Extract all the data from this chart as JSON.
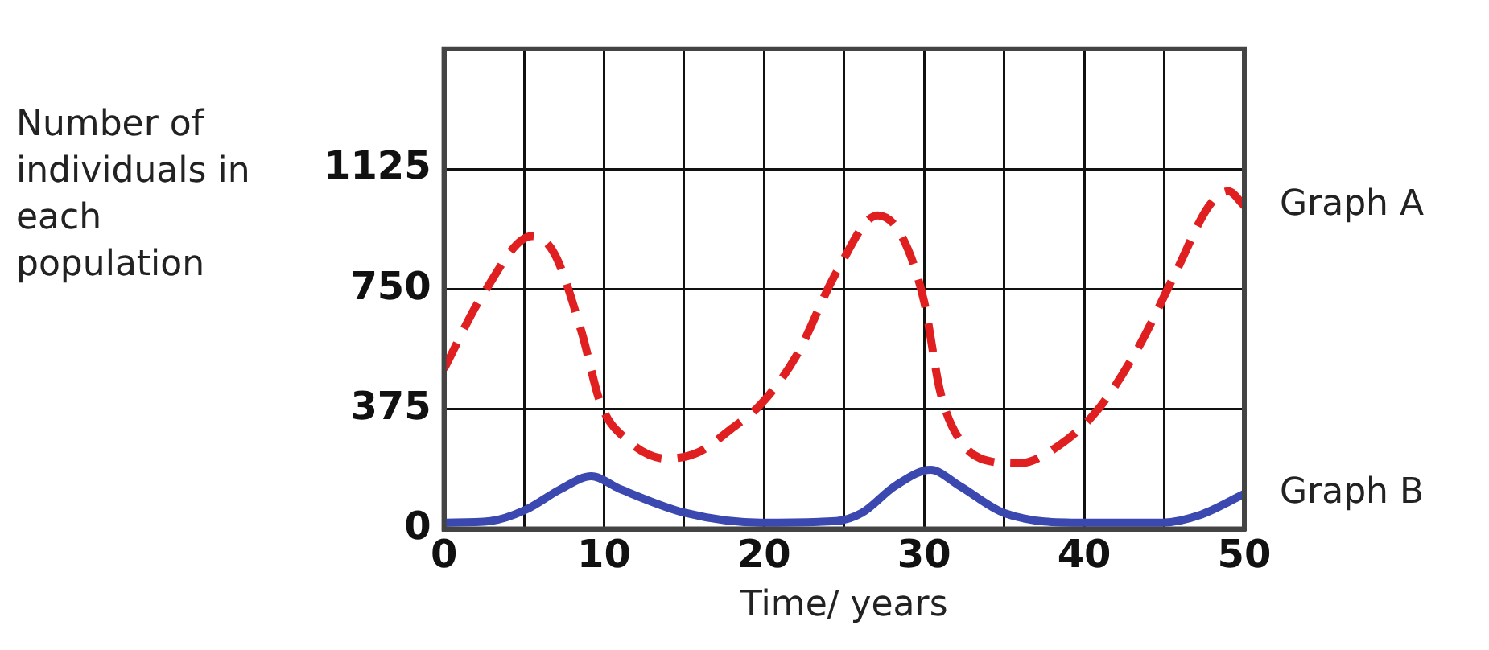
{
  "chart_data": {
    "type": "line",
    "xlabel": "Time/ years",
    "ylabel": "Number of individuals in each population",
    "xlim": [
      0,
      50
    ],
    "xticks": [
      0,
      {
        "value": 5,
        "label": null
      },
      10,
      {
        "value": 15,
        "label": null
      },
      20,
      {
        "value": 25,
        "label": null
      },
      30,
      {
        "value": 35,
        "label": null
      },
      40,
      {
        "value": 45,
        "label": null
      },
      50
    ],
    "ylim": [
      0,
      1500
    ],
    "yticks": [
      0,
      375,
      750,
      1125
    ],
    "grid": true,
    "legend": false,
    "marker": "none",
    "series": [
      {
        "name": "Graph A",
        "color": "#e02020",
        "line_style": "dashed",
        "x": [
          0,
          2.4,
          5.5,
          6.9,
          8.6,
          9.8,
          11.4,
          13.9,
          15.9,
          18,
          19.8,
          22,
          24.5,
          27.1,
          28.6,
          30,
          31,
          32.2,
          34.3,
          35.9,
          38.4,
          40.8,
          43.3,
          45.7,
          47.8,
          49,
          50
        ],
        "values": [
          500,
          730,
          915,
          860,
          615,
          390,
          280,
          220,
          240,
          315,
          390,
          540,
          800,
          980,
          915,
          710,
          430,
          280,
          210,
          205,
          260,
          370,
          560,
          800,
          1010,
          1055,
          1010
        ]
      },
      {
        "name": "Graph B",
        "color": "#3a48b0",
        "line_style": "solid",
        "x": [
          0,
          2.9,
          5.1,
          7.3,
          9.2,
          11,
          15.1,
          19.8,
          24.5,
          26.1,
          28.2,
          30.4,
          32.2,
          35,
          40,
          44.9,
          47.3,
          50
        ],
        "values": [
          20,
          25,
          60,
          125,
          165,
          125,
          50,
          20,
          25,
          50,
          135,
          185,
          135,
          50,
          20,
          20,
          45,
          110
        ]
      }
    ]
  }
}
